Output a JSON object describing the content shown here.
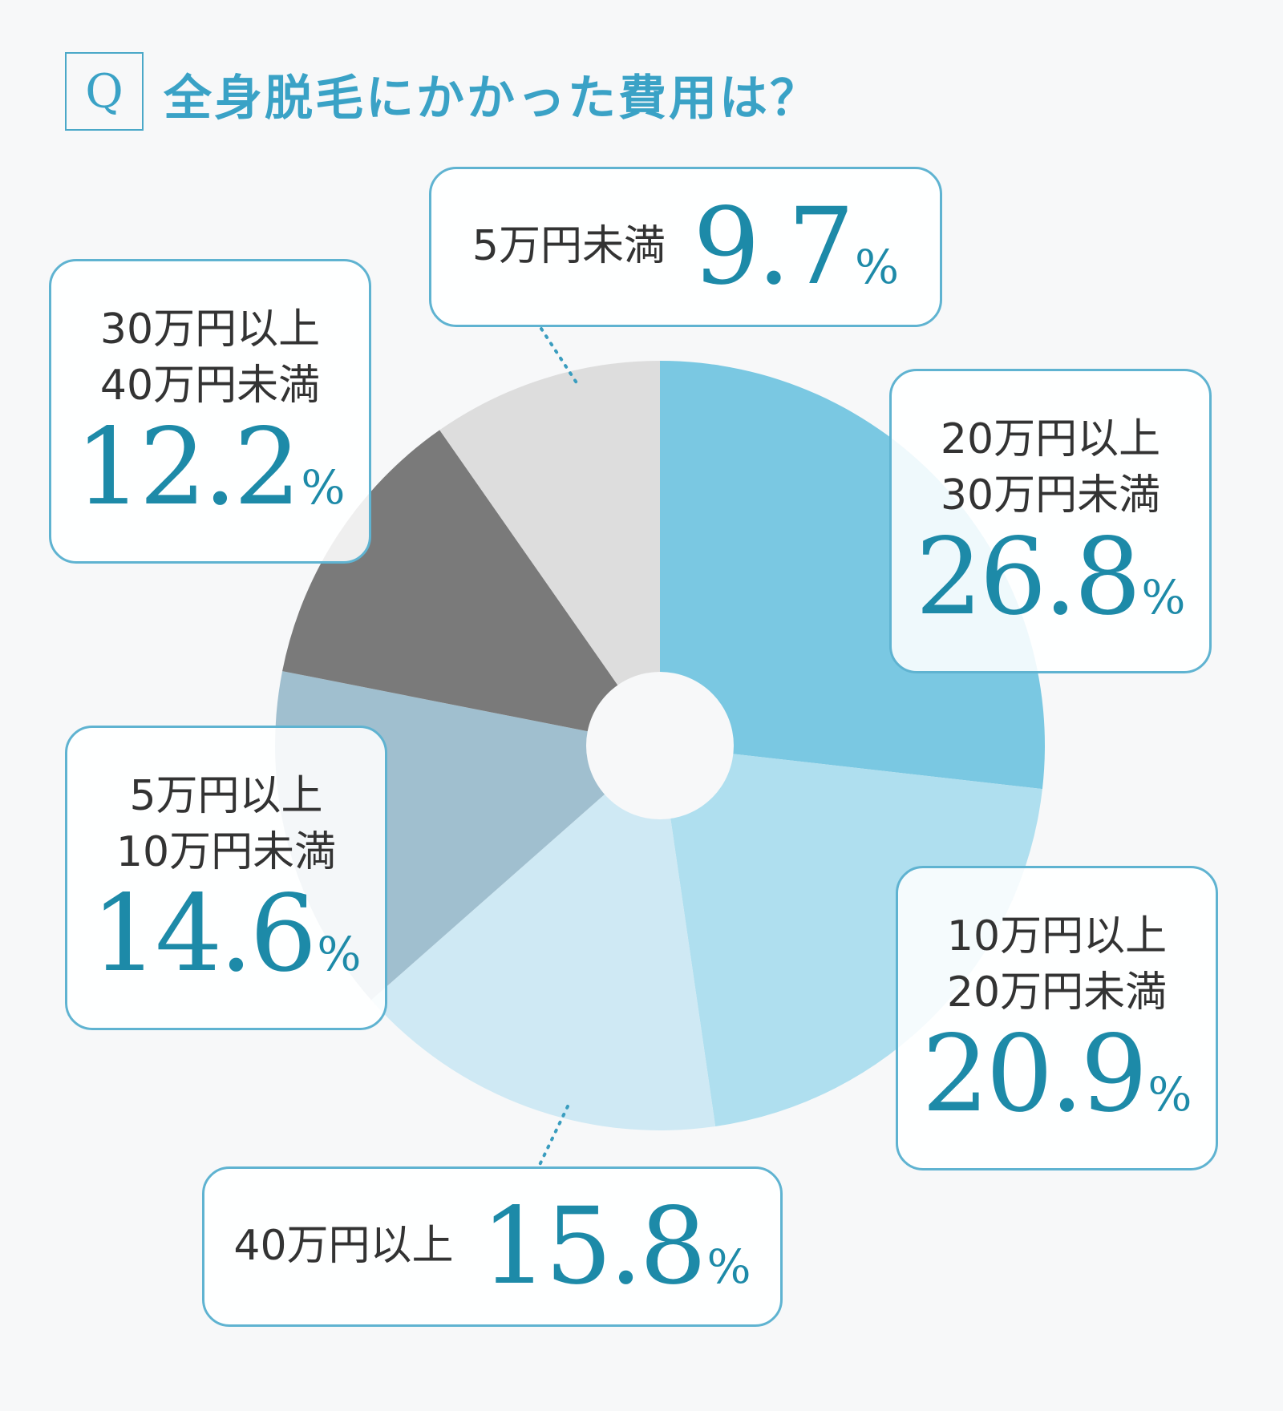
{
  "question_mark": "Q",
  "title": "全身脱毛にかかった費用は？",
  "percent_sign": "%",
  "chart_data": {
    "type": "pie",
    "title": "全身脱毛にかかった費用は？",
    "slices": [
      {
        "label": "20万円以上30万円未満",
        "label_lines": [
          "20万円以上",
          "30万円未満"
        ],
        "value": 26.8,
        "display": "26.8",
        "color": "#7ac8e2"
      },
      {
        "label": "10万円以上20万円未満",
        "label_lines": [
          "10万円以上",
          "20万円未満"
        ],
        "value": 20.9,
        "display": "20.9",
        "color": "#afdfef"
      },
      {
        "label": "40万円以上",
        "label_lines": [
          "40万円以上"
        ],
        "value": 15.8,
        "display": "15.8",
        "color": "#cfe9f4"
      },
      {
        "label": "5万円以上10万円未満",
        "label_lines": [
          "5万円以上",
          "10万円未満"
        ],
        "value": 14.6,
        "display": "14.6",
        "color": "#a0bfcf"
      },
      {
        "label": "30万円以上40万円未満",
        "label_lines": [
          "30万円以上",
          "40万円未満"
        ],
        "value": 12.2,
        "display": "12.2",
        "color": "#7a7a7a"
      },
      {
        "label": "5万円未満",
        "label_lines": [
          "5万円未満"
        ],
        "value": 9.7,
        "display": "9.7",
        "color": "#dddddd"
      }
    ]
  }
}
